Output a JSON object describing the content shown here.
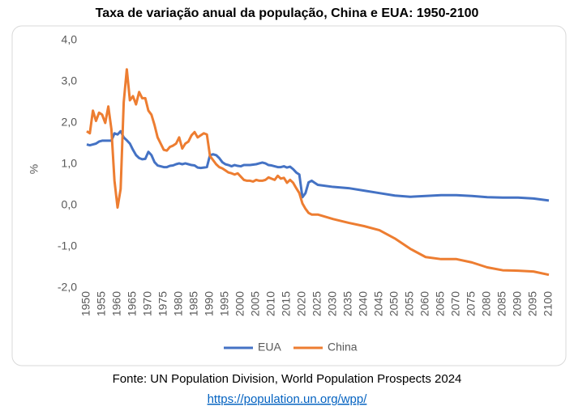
{
  "chart_data": {
    "type": "line",
    "title": "Taxa de variação anual da população, China e EUA: 1950-2100",
    "y_label": "%",
    "x": [
      1950,
      1951,
      1952,
      1953,
      1954,
      1955,
      1956,
      1957,
      1958,
      1959,
      1960,
      1961,
      1962,
      1963,
      1964,
      1965,
      1966,
      1967,
      1968,
      1969,
      1970,
      1971,
      1972,
      1973,
      1974,
      1975,
      1976,
      1977,
      1978,
      1979,
      1980,
      1981,
      1982,
      1983,
      1984,
      1985,
      1986,
      1987,
      1988,
      1989,
      1990,
      1991,
      1992,
      1993,
      1994,
      1995,
      1996,
      1997,
      1998,
      1999,
      2000,
      2001,
      2002,
      2003,
      2004,
      2005,
      2006,
      2007,
      2008,
      2009,
      2010,
      2011,
      2012,
      2013,
      2014,
      2015,
      2016,
      2017,
      2018,
      2019,
      2020,
      2021,
      2022,
      2023,
      2024,
      2025,
      2030,
      2035,
      2040,
      2045,
      2050,
      2055,
      2060,
      2065,
      2070,
      2075,
      2080,
      2085,
      2090,
      2095,
      2100
    ],
    "series": [
      {
        "name": "EUA",
        "color": "#4472c4",
        "values": [
          1.48,
          1.46,
          1.48,
          1.5,
          1.55,
          1.57,
          1.57,
          1.57,
          1.57,
          1.75,
          1.72,
          1.8,
          1.65,
          1.58,
          1.5,
          1.35,
          1.22,
          1.15,
          1.12,
          1.13,
          1.3,
          1.22,
          1.05,
          0.97,
          0.95,
          0.93,
          0.93,
          0.96,
          0.97,
          1.0,
          1.02,
          1.0,
          1.02,
          1.0,
          0.98,
          0.97,
          0.92,
          0.91,
          0.92,
          0.93,
          1.22,
          1.24,
          1.22,
          1.15,
          1.05,
          1.0,
          0.98,
          0.95,
          0.98,
          0.96,
          0.95,
          0.98,
          0.98,
          0.98,
          0.99,
          1.0,
          1.02,
          1.04,
          1.02,
          0.98,
          0.97,
          0.95,
          0.93,
          0.93,
          0.95,
          0.92,
          0.94,
          0.88,
          0.8,
          0.75,
          0.2,
          0.3,
          0.56,
          0.6,
          0.55,
          0.5,
          0.45,
          0.42,
          0.36,
          0.3,
          0.24,
          0.21,
          0.23,
          0.25,
          0.25,
          0.23,
          0.2,
          0.19,
          0.19,
          0.17,
          0.12
        ]
      },
      {
        "name": "China",
        "color": "#ed7d31",
        "values": [
          1.8,
          1.75,
          2.3,
          2.05,
          2.25,
          2.2,
          2.0,
          2.4,
          1.85,
          0.6,
          -0.05,
          0.4,
          2.5,
          3.3,
          2.55,
          2.65,
          2.45,
          2.75,
          2.6,
          2.6,
          2.3,
          2.2,
          1.95,
          1.65,
          1.5,
          1.35,
          1.33,
          1.42,
          1.45,
          1.5,
          1.65,
          1.38,
          1.5,
          1.55,
          1.7,
          1.78,
          1.65,
          1.7,
          1.75,
          1.72,
          1.2,
          1.1,
          1.0,
          0.93,
          0.9,
          0.85,
          0.8,
          0.78,
          0.75,
          0.78,
          0.7,
          0.62,
          0.6,
          0.6,
          0.58,
          0.62,
          0.6,
          0.6,
          0.62,
          0.68,
          0.65,
          0.62,
          0.72,
          0.65,
          0.67,
          0.55,
          0.62,
          0.55,
          0.42,
          0.3,
          0.05,
          -0.08,
          -0.18,
          -0.22,
          -0.22,
          -0.22,
          -0.33,
          -0.42,
          -0.5,
          -0.6,
          -0.8,
          -1.05,
          -1.25,
          -1.3,
          -1.3,
          -1.38,
          -1.5,
          -1.57,
          -1.58,
          -1.6,
          -1.68
        ]
      }
    ],
    "xlim": [
      1950,
      2100
    ],
    "xticks": [
      1950,
      1955,
      1960,
      1965,
      1970,
      1975,
      1980,
      1985,
      1990,
      1995,
      2000,
      2005,
      2010,
      2015,
      2020,
      2025,
      2030,
      2035,
      2040,
      2045,
      2050,
      2055,
      2060,
      2065,
      2070,
      2075,
      2080,
      2085,
      2090,
      2095,
      2100
    ],
    "ylim": [
      -2,
      4
    ],
    "yticks": [
      {
        "value": -2,
        "label": "-2,0"
      },
      {
        "value": -1,
        "label": "-1,0"
      },
      {
        "value": 0,
        "label": "0,0"
      },
      {
        "value": 1,
        "label": "1,0"
      },
      {
        "value": 2,
        "label": "2,0"
      },
      {
        "value": 3,
        "label": "3,0"
      },
      {
        "value": 4,
        "label": "4,0"
      }
    ],
    "grid": false,
    "legend": "bottom",
    "source": "Fonte: UN Population Division, World Population Prospects 2024",
    "link": "https://population.un.org/wpp/"
  }
}
